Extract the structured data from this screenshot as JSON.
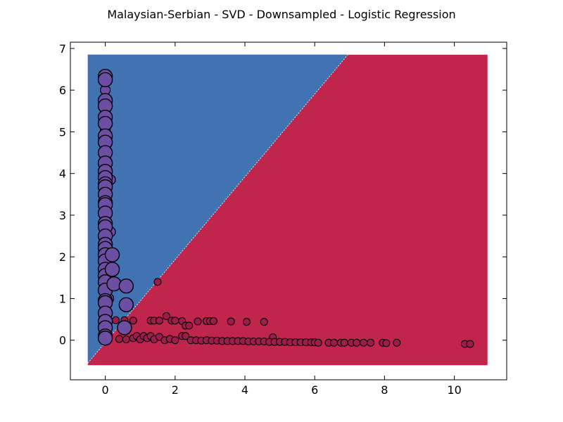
{
  "chart_data": {
    "type": "scatter",
    "title": "Malaysian-Serbian - SVD - Downsampled - Logistic Regression",
    "xlabel": "",
    "ylabel": "",
    "xlim": [
      -1.0,
      11.5
    ],
    "ylim": [
      -0.95,
      7.15
    ],
    "xticks": [
      0,
      2,
      4,
      6,
      8,
      10
    ],
    "yticks": [
      0,
      1,
      2,
      3,
      4,
      5,
      6,
      7
    ],
    "grid": false,
    "legend": "none",
    "decision_regions": {
      "x_range": [
        -0.5,
        10.95
      ],
      "y_range": [
        -0.6,
        6.85
      ],
      "boundary": [
        [
          -0.5,
          -0.55
        ],
        [
          6.95,
          6.85
        ]
      ],
      "upper_left_class_color": "#4173b3",
      "lower_right_class_color": "#c0264b"
    },
    "series": [
      {
        "class": "purple",
        "color": "#6c4fa3",
        "size_large": 10,
        "size_small": 7,
        "points_large": [
          [
            0,
            6.33
          ],
          [
            0,
            6.25
          ],
          [
            0,
            5.75
          ],
          [
            0,
            5.62
          ],
          [
            0,
            5.35
          ],
          [
            0,
            5.2
          ],
          [
            0,
            4.9
          ],
          [
            0,
            4.75
          ],
          [
            0,
            4.5
          ],
          [
            0,
            4.25
          ],
          [
            0,
            4.05
          ],
          [
            0,
            3.9
          ],
          [
            0,
            3.75
          ],
          [
            0,
            3.68
          ],
          [
            0,
            3.5
          ],
          [
            0,
            3.3
          ],
          [
            0,
            3.25
          ],
          [
            0,
            3.05
          ],
          [
            0,
            2.8
          ],
          [
            0,
            2.72
          ],
          [
            0,
            2.5
          ],
          [
            0,
            2.3
          ],
          [
            0,
            2.2
          ],
          [
            0,
            2.05
          ],
          [
            0,
            1.9
          ],
          [
            0,
            1.7
          ],
          [
            0,
            1.55
          ],
          [
            0,
            1.4
          ],
          [
            0,
            1.2
          ],
          [
            0,
            0.95
          ],
          [
            0,
            0.9
          ],
          [
            0,
            0.65
          ],
          [
            0,
            0.45
          ],
          [
            0,
            0.3
          ],
          [
            0,
            0.1
          ],
          [
            0,
            0.05
          ],
          [
            0.2,
            2.05
          ],
          [
            0.2,
            1.7
          ],
          [
            0.25,
            1.35
          ],
          [
            0.6,
            1.3
          ],
          [
            0.6,
            0.85
          ],
          [
            0.55,
            0.3
          ]
        ],
        "points_small": [
          [
            0,
            6.0
          ],
          [
            0,
            5.5
          ],
          [
            0,
            5.05
          ],
          [
            0,
            4.65
          ],
          [
            0,
            4.4
          ],
          [
            0,
            4.15
          ],
          [
            0,
            3.95
          ],
          [
            0,
            3.6
          ],
          [
            0,
            3.4
          ],
          [
            0,
            3.15
          ],
          [
            0,
            2.95
          ],
          [
            0,
            2.6
          ],
          [
            0,
            2.4
          ],
          [
            0,
            1.8
          ],
          [
            0,
            1.3
          ],
          [
            0,
            1.05
          ],
          [
            0,
            0.75
          ],
          [
            0,
            0.55
          ],
          [
            0,
            0.2
          ],
          [
            0.15,
            3.85
          ],
          [
            0.15,
            2.6
          ],
          [
            0.1,
            1.0
          ]
        ]
      },
      {
        "class": "red",
        "color": "#9b1d4a",
        "size": 5,
        "points": [
          [
            1.5,
            1.4
          ],
          [
            1.75,
            0.58
          ],
          [
            0.3,
            0.48
          ],
          [
            0.55,
            0.48
          ],
          [
            0.8,
            0.47
          ],
          [
            1.3,
            0.47
          ],
          [
            1.4,
            0.47
          ],
          [
            1.55,
            0.47
          ],
          [
            1.9,
            0.47
          ],
          [
            2.0,
            0.47
          ],
          [
            2.2,
            0.46
          ],
          [
            2.3,
            0.35
          ],
          [
            2.4,
            0.35
          ],
          [
            2.65,
            0.45
          ],
          [
            2.9,
            0.46
          ],
          [
            3.0,
            0.46
          ],
          [
            3.1,
            0.46
          ],
          [
            3.6,
            0.45
          ],
          [
            4.05,
            0.44
          ],
          [
            4.55,
            0.44
          ],
          [
            4.8,
            0.07
          ],
          [
            0.4,
            0.03
          ],
          [
            0.6,
            0.02
          ],
          [
            0.8,
            0.05
          ],
          [
            0.9,
            0.1
          ],
          [
            1.0,
            0.02
          ],
          [
            1.1,
            0.1
          ],
          [
            1.2,
            0.05
          ],
          [
            1.3,
            0.1
          ],
          [
            1.4,
            0.02
          ],
          [
            1.55,
            0.08
          ],
          [
            1.7,
            0.0
          ],
          [
            1.85,
            0.03
          ],
          [
            2.0,
            0.0
          ],
          [
            2.2,
            0.1
          ],
          [
            2.3,
            0.1
          ],
          [
            2.45,
            0.0
          ],
          [
            2.6,
            0.0
          ],
          [
            2.75,
            -0.01
          ],
          [
            2.9,
            0.0
          ],
          [
            3.05,
            -0.01
          ],
          [
            3.2,
            -0.01
          ],
          [
            3.35,
            -0.02
          ],
          [
            3.5,
            -0.02
          ],
          [
            3.65,
            -0.02
          ],
          [
            3.8,
            -0.02
          ],
          [
            3.95,
            -0.02
          ],
          [
            4.1,
            -0.03
          ],
          [
            4.25,
            -0.03
          ],
          [
            4.4,
            -0.03
          ],
          [
            4.55,
            -0.03
          ],
          [
            4.7,
            -0.04
          ],
          [
            4.85,
            -0.04
          ],
          [
            5.0,
            -0.04
          ],
          [
            5.15,
            -0.04
          ],
          [
            5.3,
            -0.05
          ],
          [
            5.45,
            -0.05
          ],
          [
            5.6,
            -0.05
          ],
          [
            5.75,
            -0.05
          ],
          [
            5.9,
            -0.05
          ],
          [
            6.0,
            -0.05
          ],
          [
            6.1,
            -0.06
          ],
          [
            6.4,
            -0.06
          ],
          [
            6.55,
            -0.06
          ],
          [
            6.75,
            -0.06
          ],
          [
            6.85,
            -0.06
          ],
          [
            7.05,
            -0.06
          ],
          [
            7.2,
            -0.06
          ],
          [
            7.4,
            -0.06
          ],
          [
            7.6,
            -0.06
          ],
          [
            7.95,
            -0.06
          ],
          [
            8.05,
            -0.07
          ],
          [
            8.35,
            -0.06
          ],
          [
            10.3,
            -0.09
          ],
          [
            10.45,
            -0.09
          ]
        ]
      }
    ]
  }
}
